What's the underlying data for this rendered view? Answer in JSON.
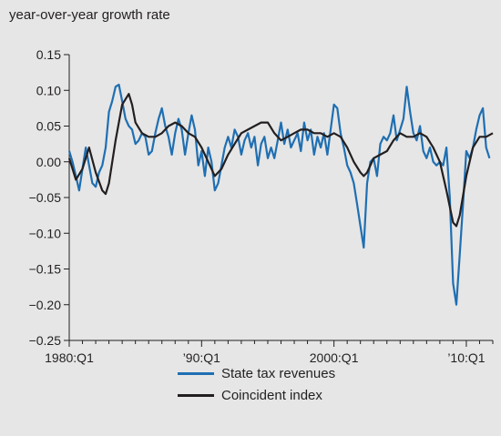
{
  "chart_data": {
    "type": "line",
    "title": "",
    "ylabel": "year-over-year growth rate",
    "xlabel": "",
    "ylim": [
      -0.25,
      0.15
    ],
    "yticks": [
      0.15,
      0.1,
      0.05,
      0.0,
      -0.05,
      -0.1,
      -0.15,
      -0.2,
      -0.25
    ],
    "ytick_labels": [
      "0.15",
      "0.10",
      "0.05",
      "0.00",
      "−0.05",
      "−0.10",
      "−0.15",
      "−0.20",
      "−0.25"
    ],
    "xlim": [
      1980.0,
      2012.0
    ],
    "xticks": [
      1980.0,
      1990.0,
      2000.0,
      2010.0
    ],
    "xtick_labels": [
      "1980:Q1",
      "’90:Q1",
      "2000:Q1",
      "’10:Q1"
    ],
    "grid": false,
    "legend_position": "bottom",
    "series": [
      {
        "name": "State tax revenues",
        "color": "#1f6fb2",
        "points": [
          [
            1980.0,
            0.015
          ],
          [
            1980.25,
            0.0
          ],
          [
            1980.5,
            -0.02
          ],
          [
            1980.75,
            -0.04
          ],
          [
            1981.0,
            -0.01
          ],
          [
            1981.25,
            0.02
          ],
          [
            1981.5,
            -0.005
          ],
          [
            1981.75,
            -0.03
          ],
          [
            1982.0,
            -0.035
          ],
          [
            1982.25,
            -0.015
          ],
          [
            1982.5,
            -0.005
          ],
          [
            1982.75,
            0.02
          ],
          [
            1983.0,
            0.07
          ],
          [
            1983.25,
            0.085
          ],
          [
            1983.5,
            0.105
          ],
          [
            1983.75,
            0.108
          ],
          [
            1984.0,
            0.085
          ],
          [
            1984.25,
            0.06
          ],
          [
            1984.5,
            0.05
          ],
          [
            1984.75,
            0.045
          ],
          [
            1985.0,
            0.025
          ],
          [
            1985.25,
            0.03
          ],
          [
            1985.5,
            0.04
          ],
          [
            1985.75,
            0.035
          ],
          [
            1986.0,
            0.01
          ],
          [
            1986.25,
            0.015
          ],
          [
            1986.5,
            0.04
          ],
          [
            1986.75,
            0.06
          ],
          [
            1987.0,
            0.075
          ],
          [
            1987.25,
            0.05
          ],
          [
            1987.5,
            0.035
          ],
          [
            1987.75,
            0.01
          ],
          [
            1988.0,
            0.04
          ],
          [
            1988.25,
            0.06
          ],
          [
            1988.5,
            0.045
          ],
          [
            1988.75,
            0.01
          ],
          [
            1989.0,
            0.04
          ],
          [
            1989.25,
            0.065
          ],
          [
            1989.5,
            0.045
          ],
          [
            1989.75,
            -0.005
          ],
          [
            1990.0,
            0.015
          ],
          [
            1990.25,
            -0.02
          ],
          [
            1990.5,
            0.02
          ],
          [
            1990.75,
            0.0
          ],
          [
            1991.0,
            -0.04
          ],
          [
            1991.25,
            -0.03
          ],
          [
            1991.5,
            -0.005
          ],
          [
            1991.75,
            0.02
          ],
          [
            1992.0,
            0.035
          ],
          [
            1992.25,
            0.02
          ],
          [
            1992.5,
            0.045
          ],
          [
            1992.75,
            0.035
          ],
          [
            1993.0,
            0.01
          ],
          [
            1993.25,
            0.03
          ],
          [
            1993.5,
            0.04
          ],
          [
            1993.75,
            0.02
          ],
          [
            1994.0,
            0.035
          ],
          [
            1994.25,
            -0.005
          ],
          [
            1994.5,
            0.025
          ],
          [
            1994.75,
            0.035
          ],
          [
            1995.0,
            0.005
          ],
          [
            1995.25,
            0.02
          ],
          [
            1995.5,
            0.005
          ],
          [
            1995.75,
            0.03
          ],
          [
            1996.0,
            0.055
          ],
          [
            1996.25,
            0.025
          ],
          [
            1996.5,
            0.045
          ],
          [
            1996.75,
            0.02
          ],
          [
            1997.0,
            0.03
          ],
          [
            1997.25,
            0.04
          ],
          [
            1997.5,
            0.015
          ],
          [
            1997.75,
            0.055
          ],
          [
            1998.0,
            0.03
          ],
          [
            1998.25,
            0.045
          ],
          [
            1998.5,
            0.01
          ],
          [
            1998.75,
            0.035
          ],
          [
            1999.0,
            0.02
          ],
          [
            1999.25,
            0.04
          ],
          [
            1999.5,
            0.01
          ],
          [
            1999.75,
            0.045
          ],
          [
            2000.0,
            0.08
          ],
          [
            2000.25,
            0.075
          ],
          [
            2000.5,
            0.04
          ],
          [
            2000.75,
            0.02
          ],
          [
            2001.0,
            -0.005
          ],
          [
            2001.25,
            -0.015
          ],
          [
            2001.5,
            -0.03
          ],
          [
            2001.75,
            -0.06
          ],
          [
            2002.0,
            -0.09
          ],
          [
            2002.25,
            -0.12
          ],
          [
            2002.5,
            -0.03
          ],
          [
            2002.75,
            0.0
          ],
          [
            2003.0,
            0.005
          ],
          [
            2003.25,
            -0.02
          ],
          [
            2003.5,
            0.025
          ],
          [
            2003.75,
            0.035
          ],
          [
            2004.0,
            0.03
          ],
          [
            2004.25,
            0.04
          ],
          [
            2004.5,
            0.065
          ],
          [
            2004.75,
            0.03
          ],
          [
            2005.0,
            0.045
          ],
          [
            2005.25,
            0.06
          ],
          [
            2005.5,
            0.105
          ],
          [
            2005.75,
            0.07
          ],
          [
            2006.0,
            0.04
          ],
          [
            2006.25,
            0.03
          ],
          [
            2006.5,
            0.05
          ],
          [
            2006.75,
            0.015
          ],
          [
            2007.0,
            0.005
          ],
          [
            2007.25,
            0.02
          ],
          [
            2007.5,
            0.0
          ],
          [
            2007.75,
            -0.005
          ],
          [
            2008.0,
            0.0
          ],
          [
            2008.25,
            -0.005
          ],
          [
            2008.5,
            0.02
          ],
          [
            2008.75,
            -0.05
          ],
          [
            2009.0,
            -0.17
          ],
          [
            2009.25,
            -0.2
          ],
          [
            2009.5,
            -0.13
          ],
          [
            2009.75,
            -0.06
          ],
          [
            2010.0,
            0.015
          ],
          [
            2010.25,
            0.005
          ],
          [
            2010.5,
            0.02
          ],
          [
            2010.75,
            0.045
          ],
          [
            2011.0,
            0.065
          ],
          [
            2011.25,
            0.075
          ],
          [
            2011.5,
            0.02
          ],
          [
            2011.75,
            0.005
          ]
        ]
      },
      {
        "name": "Coincident index",
        "color": "#231f20",
        "points": [
          [
            1980.0,
            0.005
          ],
          [
            1980.5,
            -0.025
          ],
          [
            1981.0,
            -0.01
          ],
          [
            1981.5,
            0.02
          ],
          [
            1982.0,
            -0.015
          ],
          [
            1982.5,
            -0.04
          ],
          [
            1982.75,
            -0.045
          ],
          [
            1983.0,
            -0.03
          ],
          [
            1983.5,
            0.03
          ],
          [
            1984.0,
            0.08
          ],
          [
            1984.5,
            0.095
          ],
          [
            1984.75,
            0.08
          ],
          [
            1985.0,
            0.055
          ],
          [
            1985.5,
            0.04
          ],
          [
            1986.0,
            0.035
          ],
          [
            1986.5,
            0.035
          ],
          [
            1987.0,
            0.04
          ],
          [
            1987.5,
            0.05
          ],
          [
            1988.0,
            0.055
          ],
          [
            1988.5,
            0.05
          ],
          [
            1989.0,
            0.04
          ],
          [
            1989.5,
            0.035
          ],
          [
            1990.0,
            0.02
          ],
          [
            1990.5,
            0.0
          ],
          [
            1991.0,
            -0.02
          ],
          [
            1991.5,
            -0.01
          ],
          [
            1992.0,
            0.01
          ],
          [
            1992.5,
            0.025
          ],
          [
            1993.0,
            0.04
          ],
          [
            1993.5,
            0.045
          ],
          [
            1994.0,
            0.05
          ],
          [
            1994.5,
            0.055
          ],
          [
            1995.0,
            0.055
          ],
          [
            1995.5,
            0.04
          ],
          [
            1996.0,
            0.03
          ],
          [
            1996.5,
            0.035
          ],
          [
            1997.0,
            0.04
          ],
          [
            1997.5,
            0.045
          ],
          [
            1998.0,
            0.045
          ],
          [
            1998.5,
            0.04
          ],
          [
            1999.0,
            0.04
          ],
          [
            1999.5,
            0.035
          ],
          [
            2000.0,
            0.04
          ],
          [
            2000.5,
            0.035
          ],
          [
            2001.0,
            0.02
          ],
          [
            2001.5,
            0.0
          ],
          [
            2002.0,
            -0.015
          ],
          [
            2002.25,
            -0.02
          ],
          [
            2002.5,
            -0.015
          ],
          [
            2003.0,
            0.005
          ],
          [
            2003.5,
            0.01
          ],
          [
            2004.0,
            0.015
          ],
          [
            2004.5,
            0.03
          ],
          [
            2005.0,
            0.04
          ],
          [
            2005.5,
            0.035
          ],
          [
            2006.0,
            0.035
          ],
          [
            2006.5,
            0.04
          ],
          [
            2007.0,
            0.035
          ],
          [
            2007.5,
            0.02
          ],
          [
            2008.0,
            0.0
          ],
          [
            2008.5,
            -0.04
          ],
          [
            2009.0,
            -0.085
          ],
          [
            2009.25,
            -0.09
          ],
          [
            2009.5,
            -0.075
          ],
          [
            2010.0,
            -0.02
          ],
          [
            2010.5,
            0.02
          ],
          [
            2011.0,
            0.035
          ],
          [
            2011.5,
            0.035
          ],
          [
            2012.0,
            0.04
          ]
        ]
      }
    ]
  }
}
